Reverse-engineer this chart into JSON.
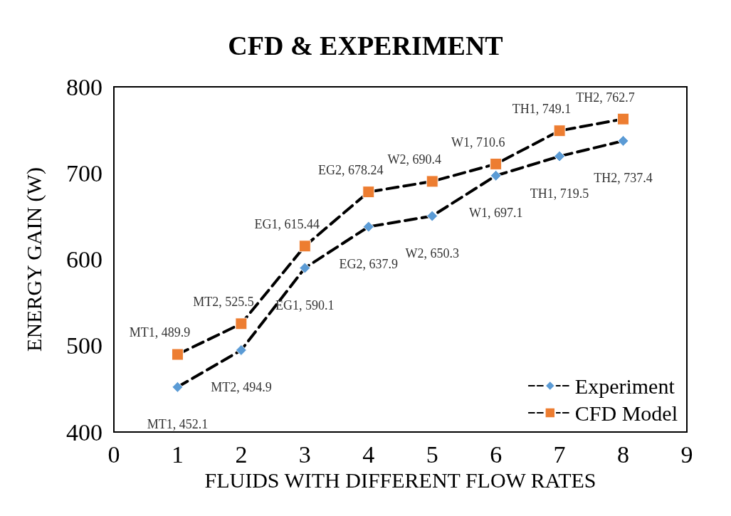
{
  "chart_data": {
    "type": "line",
    "title": "CFD & EXPERIMENT",
    "xlabel": "FLUIDS WITH DIFFERENT FLOW RATES",
    "ylabel": "ENERGY GAIN (W)",
    "x": [
      1,
      2,
      3,
      4,
      5,
      6,
      7,
      8
    ],
    "series": [
      {
        "name": "Experiment",
        "color": "#5b9bd5",
        "marker": "diamond",
        "values": [
          452.1,
          494.9,
          590.1,
          637.9,
          650.3,
          697.1,
          719.5,
          737.4
        ],
        "value_labels": [
          "MT1, 452.1",
          "MT2, 494.9",
          "EG1, 590.1",
          "EG2, 637.9",
          "W2, 650.3",
          "W1, 697.1",
          "TH1, 719.5",
          "TH2, 737.4"
        ]
      },
      {
        "name": "CFD Model",
        "color": "#ed7d31",
        "marker": "square",
        "values": [
          489.9,
          525.5,
          615.44,
          678.24,
          690.4,
          710.6,
          749.1,
          762.7
        ],
        "value_labels": [
          "MT1, 489.9",
          "MT2, 525.5",
          "EG1, 615.44",
          "EG2, 678.24",
          "W2, 690.4",
          "W1, 710.6",
          "TH1, 749.1",
          "TH2, 762.7"
        ]
      }
    ],
    "xlim": [
      0,
      9
    ],
    "xticks": [
      0,
      1,
      2,
      3,
      4,
      5,
      6,
      7,
      8,
      9
    ],
    "ylim": [
      400,
      800
    ],
    "yticks": [
      400,
      500,
      600,
      700,
      800
    ],
    "grid": false,
    "legend": "bottom right",
    "line_style": "dashed"
  }
}
